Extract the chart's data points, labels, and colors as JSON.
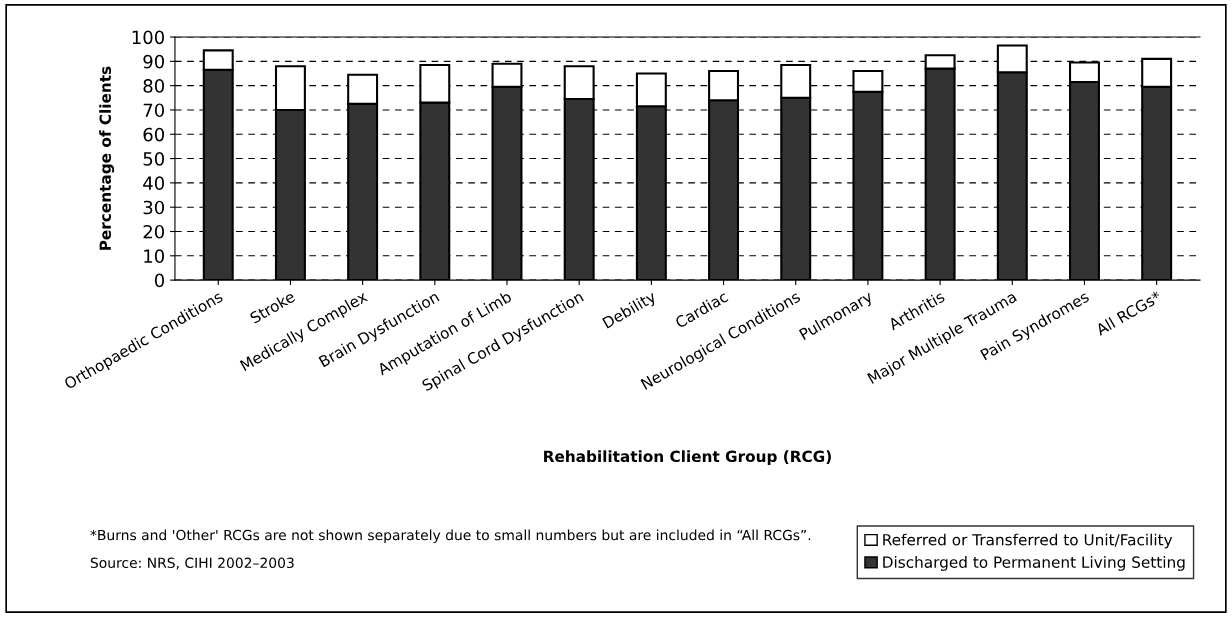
{
  "chart_data": {
    "type": "bar",
    "stacked": true,
    "xlabel": "Rehabilitation Client Group (RCG)",
    "ylabel": "Percentage of Clients",
    "categories": [
      "Orthopaedic Conditions",
      "Stroke",
      "Medically Complex",
      "Brain Dysfunction",
      "Amputation of Limb",
      "Spinal Cord Dysfunction",
      "Debility",
      "Cardiac",
      "Neurological Conditions",
      "Pulmonary",
      "Arthritis",
      "Major Multiple Trauma",
      "Pain Syndromes",
      "All RCGs*"
    ],
    "series": [
      {
        "name": "Discharged to Permanent Living Setting",
        "color": "#333333",
        "values": [
          86.5,
          70,
          72.5,
          73,
          79.5,
          74.5,
          71.5,
          74,
          75,
          77.5,
          87,
          85.5,
          81.5,
          79.5
        ]
      },
      {
        "name": "Referred or Transferred to Unit/Facility",
        "color": "#ffffff",
        "values": [
          8,
          18,
          12,
          15.5,
          9.5,
          13.5,
          13.5,
          12,
          13.5,
          8.5,
          5.5,
          11,
          8,
          11.5
        ]
      }
    ],
    "ylim": [
      0,
      100
    ],
    "yticks": [
      0,
      10,
      20,
      30,
      40,
      50,
      60,
      70,
      80,
      90,
      100
    ],
    "grid": "y",
    "legend": "bottom right",
    "annotations": [
      "*Burns and 'Other' RCGs are not shown separately due to small numbers but are included in “All RCGs”.",
      "Source: NRS, CIHI 2002–2003"
    ]
  }
}
